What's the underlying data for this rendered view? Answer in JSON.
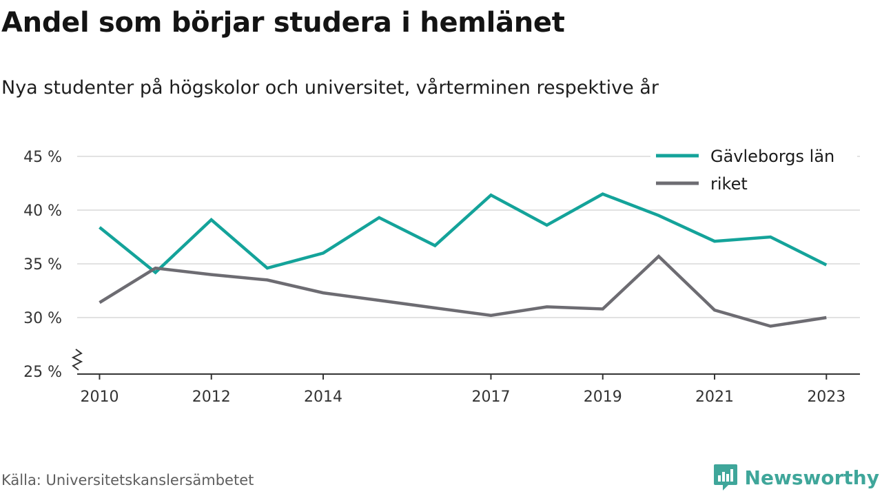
{
  "header": {
    "title": "Andel som börjar studera i hemlänet",
    "subtitle": "Nya studenter på högskolor och universitet, vårterminen respektive år"
  },
  "footer": {
    "source": "Källa: Universitetskanslersämbetet",
    "brand": "Newsworthy",
    "brand_icon": "bar-chart-speech-bubble-icon",
    "brand_color": "#3fa69a"
  },
  "chart_data": {
    "type": "line",
    "title": "Andel som börjar studera i hemlänet",
    "subtitle": "Nya studenter på högskolor och universitet, vårterminen respektive år",
    "xlabel": "",
    "ylabel": "",
    "x": [
      2010,
      2011,
      2012,
      2013,
      2014,
      2015,
      2016,
      2017,
      2018,
      2019,
      2020,
      2021,
      2022,
      2023
    ],
    "x_tick_labels": [
      "2010",
      "2012",
      "2014",
      "2017",
      "2019",
      "2021",
      "2023"
    ],
    "x_ticks": [
      2010,
      2012,
      2014,
      2017,
      2019,
      2021,
      2023
    ],
    "y_ticks": [
      25,
      30,
      35,
      40,
      45
    ],
    "y_tick_labels": [
      "25 %",
      "30 %",
      "35 %",
      "40 %",
      "45 %"
    ],
    "ylim": [
      25,
      45
    ],
    "y_axis_break": true,
    "grid": true,
    "legend_position": "top-right",
    "series": [
      {
        "name": "Gävleborgs län",
        "color": "#14a39a",
        "values": [
          38.4,
          34.2,
          39.1,
          34.6,
          36.0,
          39.3,
          36.7,
          41.4,
          38.6,
          41.5,
          39.5,
          37.1,
          37.5,
          34.9
        ]
      },
      {
        "name": "riket",
        "color": "#6d6c72",
        "values": [
          31.4,
          34.6,
          34.0,
          33.5,
          32.3,
          31.6,
          30.9,
          30.2,
          31.0,
          30.8,
          35.7,
          30.7,
          29.2,
          30.0
        ]
      }
    ]
  }
}
